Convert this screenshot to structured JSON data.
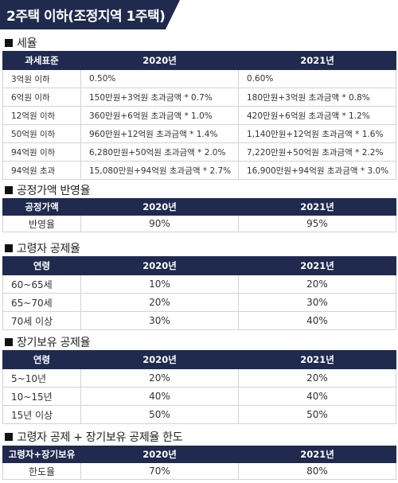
{
  "header": {
    "title": "2주택 이하(조정지역 1주택)"
  },
  "tax_section": {
    "title": "세율",
    "headers": [
      "과세표준",
      "2020년",
      "2021년"
    ],
    "rows": [
      [
        "3억원 이하",
        "0.50%",
        "0.60%"
      ],
      [
        "6억원 이하",
        "150만원+3억원 초과금액 * 0.7%",
        "180만원+3억원 초과금액 * 0.8%"
      ],
      [
        "12억원 이하",
        "360만원+6억원 초과금액 * 1.0%",
        "420만원+6억원 초과금액 * 1.2%"
      ],
      [
        "50억원 이하",
        "960만원+12억원 초과금액 * 1.4%",
        "1,140만원+12억원 초과금액 * 1.6%"
      ],
      [
        "94억원 이하",
        "6,280만원+50억원 초과금액 * 2.0%",
        "7,220만원+50억원 초과금액 * 2.2%"
      ],
      [
        "94억원 초과",
        "15,080만원+94억원 초과금액 * 2.7%",
        "16,900만원+94억원 초과금액 * 3.0%"
      ]
    ]
  },
  "fair_value_section": {
    "title": "공정가액 반영율",
    "headers": [
      "공정가액",
      "2020년",
      "2021년"
    ],
    "rows": [
      [
        "반영율",
        "90%",
        "95%"
      ]
    ]
  },
  "elderly_section": {
    "title": "고령자 공제율",
    "headers": [
      "연령",
      "2020년",
      "2021년"
    ],
    "rows": [
      [
        "60~65세",
        "10%",
        "20%"
      ],
      [
        "65~70세",
        "20%",
        "30%"
      ],
      [
        "70세 이상",
        "30%",
        "40%"
      ]
    ]
  },
  "long_term_section": {
    "title": "장기보유 공제율",
    "headers": [
      "연령",
      "2020년",
      "2021년"
    ],
    "rows": [
      [
        "5~10년",
        "20%",
        "20%"
      ],
      [
        "10~15년",
        "40%",
        "40%"
      ],
      [
        "15년 이상",
        "50%",
        "50%"
      ]
    ]
  },
  "limit_section": {
    "title": "고령자 공제 + 장기보유 공제율 한도",
    "headers": [
      "고령자+장기보유",
      "2020년",
      "2021년"
    ],
    "rows": [
      [
        "한도율",
        "70%",
        "80%"
      ]
    ]
  }
}
